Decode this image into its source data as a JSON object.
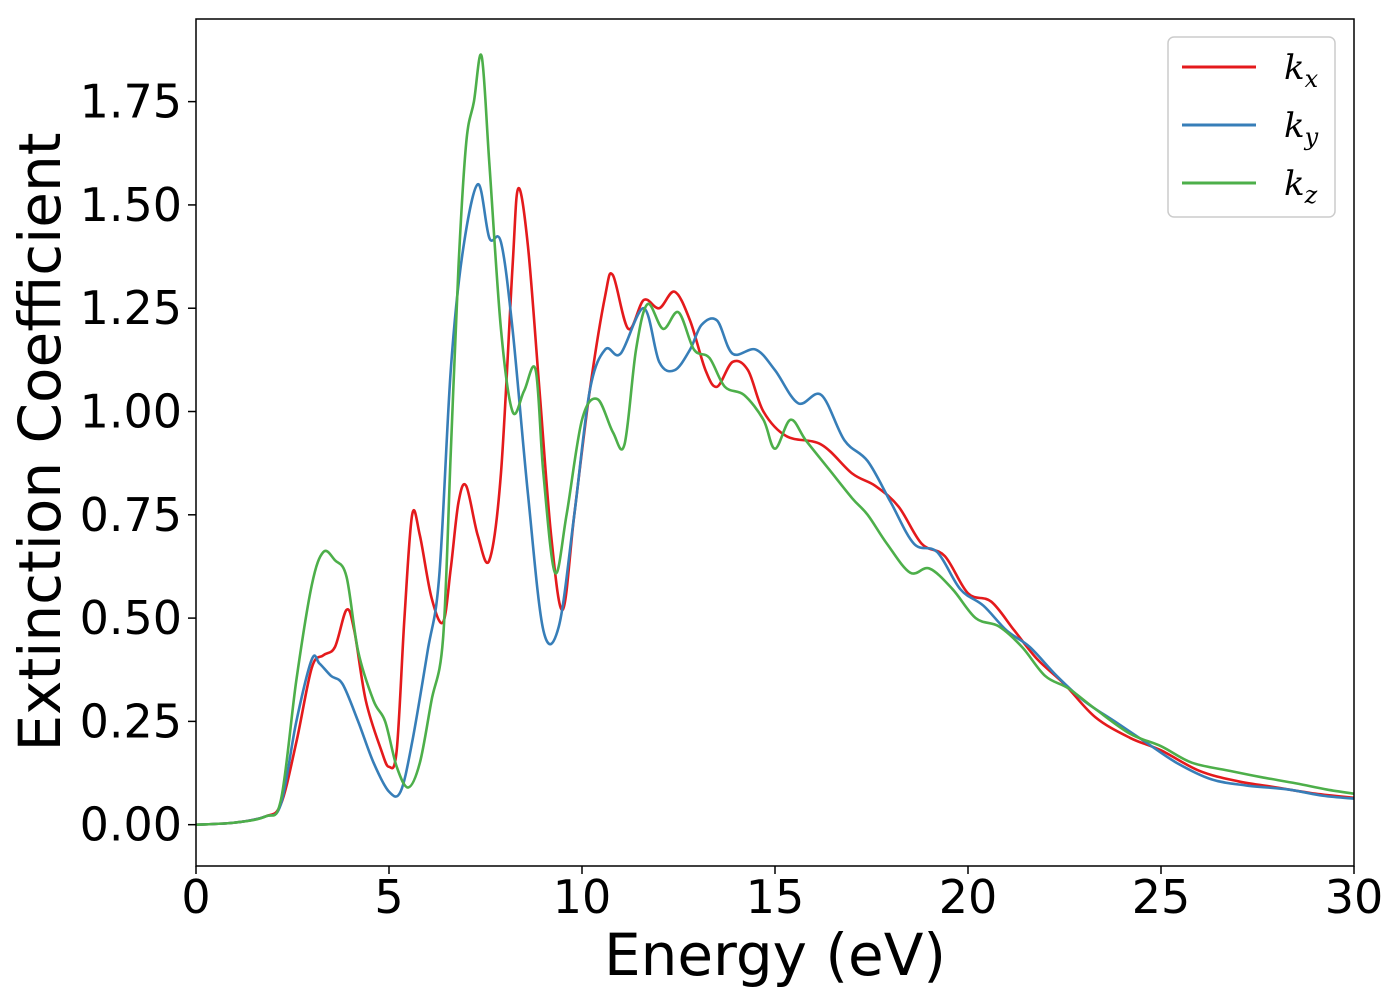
{
  "chart_data": {
    "type": "line",
    "xlabel": "Energy (eV)",
    "ylabel": "Extinction Coefficient",
    "xlim": [
      0,
      30
    ],
    "ylim": [
      -0.1,
      1.95
    ],
    "xticks": [
      "0",
      "5",
      "10",
      "15",
      "20",
      "25",
      "30"
    ],
    "yticks": [
      "0.00",
      "0.25",
      "0.50",
      "0.75",
      "1.00",
      "1.25",
      "1.50",
      "1.75"
    ],
    "grid": false,
    "legend_position": "top-right",
    "series": [
      {
        "name": "k_x",
        "label_main": "k",
        "label_sub": "x",
        "color": "#e41a1c",
        "points": [
          [
            0,
            0.0
          ],
          [
            1,
            0.005
          ],
          [
            1.8,
            0.02
          ],
          [
            2.2,
            0.05
          ],
          [
            2.6,
            0.2
          ],
          [
            3.0,
            0.38
          ],
          [
            3.3,
            0.41
          ],
          [
            3.6,
            0.43
          ],
          [
            3.9,
            0.52
          ],
          [
            4.1,
            0.47
          ],
          [
            4.4,
            0.3
          ],
          [
            4.8,
            0.18
          ],
          [
            5.0,
            0.14
          ],
          [
            5.2,
            0.18
          ],
          [
            5.4,
            0.5
          ],
          [
            5.6,
            0.75
          ],
          [
            5.8,
            0.7
          ],
          [
            6.1,
            0.55
          ],
          [
            6.4,
            0.49
          ],
          [
            6.6,
            0.62
          ],
          [
            6.8,
            0.78
          ],
          [
            7.0,
            0.82
          ],
          [
            7.3,
            0.7
          ],
          [
            7.6,
            0.64
          ],
          [
            7.9,
            0.85
          ],
          [
            8.2,
            1.35
          ],
          [
            8.35,
            1.54
          ],
          [
            8.6,
            1.4
          ],
          [
            8.9,
            1.05
          ],
          [
            9.2,
            0.7
          ],
          [
            9.5,
            0.52
          ],
          [
            9.8,
            0.75
          ],
          [
            10.2,
            1.05
          ],
          [
            10.6,
            1.28
          ],
          [
            10.8,
            1.33
          ],
          [
            11.2,
            1.2
          ],
          [
            11.6,
            1.27
          ],
          [
            12.0,
            1.25
          ],
          [
            12.4,
            1.29
          ],
          [
            12.8,
            1.22
          ],
          [
            13.2,
            1.1
          ],
          [
            13.5,
            1.06
          ],
          [
            13.9,
            1.12
          ],
          [
            14.3,
            1.1
          ],
          [
            14.7,
            1.0
          ],
          [
            15.3,
            0.94
          ],
          [
            16.2,
            0.92
          ],
          [
            17.0,
            0.85
          ],
          [
            17.6,
            0.82
          ],
          [
            18.2,
            0.77
          ],
          [
            18.8,
            0.68
          ],
          [
            19.4,
            0.65
          ],
          [
            20.0,
            0.56
          ],
          [
            20.6,
            0.54
          ],
          [
            21.2,
            0.47
          ],
          [
            21.8,
            0.4
          ],
          [
            22.5,
            0.34
          ],
          [
            23.3,
            0.26
          ],
          [
            24.2,
            0.21
          ],
          [
            25.0,
            0.18
          ],
          [
            26.0,
            0.13
          ],
          [
            27.0,
            0.105
          ],
          [
            28.0,
            0.09
          ],
          [
            29.0,
            0.075
          ],
          [
            30,
            0.065
          ]
        ]
      },
      {
        "name": "k_y",
        "label_main": "k",
        "label_sub": "y",
        "color": "#377eb8",
        "points": [
          [
            0,
            0.0
          ],
          [
            1,
            0.005
          ],
          [
            1.8,
            0.02
          ],
          [
            2.2,
            0.05
          ],
          [
            2.6,
            0.25
          ],
          [
            3.0,
            0.4
          ],
          [
            3.2,
            0.39
          ],
          [
            3.5,
            0.36
          ],
          [
            3.8,
            0.34
          ],
          [
            4.2,
            0.25
          ],
          [
            4.6,
            0.15
          ],
          [
            5.0,
            0.08
          ],
          [
            5.3,
            0.08
          ],
          [
            5.6,
            0.2
          ],
          [
            6.0,
            0.42
          ],
          [
            6.3,
            0.6
          ],
          [
            6.6,
            1.1
          ],
          [
            6.9,
            1.38
          ],
          [
            7.3,
            1.55
          ],
          [
            7.6,
            1.42
          ],
          [
            7.9,
            1.41
          ],
          [
            8.2,
            1.2
          ],
          [
            8.6,
            0.8
          ],
          [
            9.0,
            0.47
          ],
          [
            9.4,
            0.48
          ],
          [
            9.8,
            0.75
          ],
          [
            10.2,
            1.05
          ],
          [
            10.6,
            1.15
          ],
          [
            11.0,
            1.14
          ],
          [
            11.6,
            1.25
          ],
          [
            12.0,
            1.12
          ],
          [
            12.4,
            1.1
          ],
          [
            12.8,
            1.15
          ],
          [
            13.1,
            1.21
          ],
          [
            13.5,
            1.22
          ],
          [
            13.9,
            1.14
          ],
          [
            14.5,
            1.15
          ],
          [
            15.0,
            1.1
          ],
          [
            15.6,
            1.02
          ],
          [
            16.2,
            1.04
          ],
          [
            16.8,
            0.93
          ],
          [
            17.4,
            0.88
          ],
          [
            18.0,
            0.78
          ],
          [
            18.6,
            0.68
          ],
          [
            19.2,
            0.66
          ],
          [
            19.8,
            0.57
          ],
          [
            20.4,
            0.53
          ],
          [
            21.0,
            0.47
          ],
          [
            21.6,
            0.43
          ],
          [
            22.3,
            0.36
          ],
          [
            23.0,
            0.3
          ],
          [
            23.8,
            0.25
          ],
          [
            24.6,
            0.2
          ],
          [
            25.4,
            0.15
          ],
          [
            26.3,
            0.11
          ],
          [
            27.2,
            0.095
          ],
          [
            28.3,
            0.085
          ],
          [
            29.2,
            0.07
          ],
          [
            30,
            0.063
          ]
        ]
      },
      {
        "name": "k_z",
        "label_main": "k",
        "label_sub": "z",
        "color": "#4daf4a",
        "points": [
          [
            0,
            0.0
          ],
          [
            1,
            0.005
          ],
          [
            1.8,
            0.02
          ],
          [
            2.2,
            0.06
          ],
          [
            2.6,
            0.35
          ],
          [
            3.0,
            0.58
          ],
          [
            3.3,
            0.66
          ],
          [
            3.6,
            0.64
          ],
          [
            3.9,
            0.6
          ],
          [
            4.2,
            0.42
          ],
          [
            4.6,
            0.3
          ],
          [
            4.9,
            0.25
          ],
          [
            5.2,
            0.14
          ],
          [
            5.5,
            0.09
          ],
          [
            5.8,
            0.15
          ],
          [
            6.1,
            0.3
          ],
          [
            6.4,
            0.45
          ],
          [
            6.6,
            0.9
          ],
          [
            6.8,
            1.35
          ],
          [
            7.0,
            1.65
          ],
          [
            7.2,
            1.75
          ],
          [
            7.4,
            1.86
          ],
          [
            7.6,
            1.6
          ],
          [
            7.9,
            1.2
          ],
          [
            8.2,
            1.0
          ],
          [
            8.5,
            1.05
          ],
          [
            8.8,
            1.1
          ],
          [
            9.0,
            0.85
          ],
          [
            9.3,
            0.61
          ],
          [
            9.6,
            0.75
          ],
          [
            10.0,
            0.98
          ],
          [
            10.4,
            1.03
          ],
          [
            10.8,
            0.95
          ],
          [
            11.1,
            0.92
          ],
          [
            11.4,
            1.15
          ],
          [
            11.7,
            1.26
          ],
          [
            12.1,
            1.2
          ],
          [
            12.5,
            1.24
          ],
          [
            12.9,
            1.15
          ],
          [
            13.3,
            1.13
          ],
          [
            13.7,
            1.06
          ],
          [
            14.2,
            1.04
          ],
          [
            14.7,
            0.98
          ],
          [
            15.0,
            0.91
          ],
          [
            15.4,
            0.98
          ],
          [
            15.8,
            0.93
          ],
          [
            16.4,
            0.86
          ],
          [
            17.0,
            0.79
          ],
          [
            17.4,
            0.75
          ],
          [
            17.9,
            0.68
          ],
          [
            18.5,
            0.61
          ],
          [
            19.0,
            0.62
          ],
          [
            19.6,
            0.57
          ],
          [
            20.2,
            0.5
          ],
          [
            20.8,
            0.48
          ],
          [
            21.4,
            0.43
          ],
          [
            22.0,
            0.36
          ],
          [
            22.6,
            0.33
          ],
          [
            23.3,
            0.28
          ],
          [
            24.2,
            0.22
          ],
          [
            25.0,
            0.19
          ],
          [
            25.8,
            0.15
          ],
          [
            26.8,
            0.13
          ],
          [
            27.6,
            0.115
          ],
          [
            28.5,
            0.1
          ],
          [
            29.3,
            0.085
          ],
          [
            30,
            0.075
          ]
        ]
      }
    ]
  }
}
